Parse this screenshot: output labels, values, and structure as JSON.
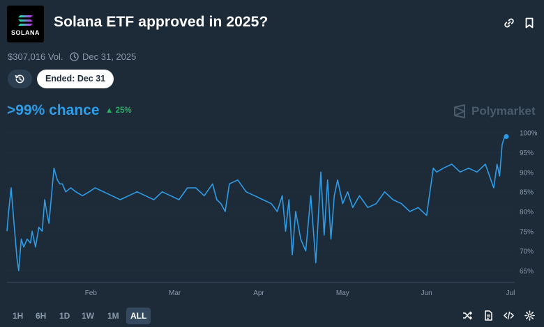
{
  "header": {
    "logo_text": "SOLANA",
    "title": "Solana ETF approved in 2025?",
    "link_icon": "link-icon",
    "bookmark_icon": "bookmark-icon"
  },
  "meta": {
    "volume": "$307,016 Vol.",
    "end_date": "Dec 31, 2025"
  },
  "status": {
    "ended_label": "Ended: Dec 31"
  },
  "outcome": {
    "chance": ">99% chance",
    "change": "25%"
  },
  "brand": "Polymarket",
  "colors": {
    "background": "#1d2b39",
    "accent": "#2e9ce6",
    "positive": "#27ae60",
    "muted": "#8a9aad"
  },
  "chart_data": {
    "type": "line",
    "ylim": [
      62,
      101
    ],
    "y_ticks": [
      100,
      95,
      90,
      85,
      80,
      75,
      70,
      65
    ],
    "y_tick_labels": [
      "100%",
      "95%",
      "90%",
      "85%",
      "80%",
      "75%",
      "70%",
      "65%"
    ],
    "x_tick_labels": [
      "Feb",
      "Mar",
      "Apr",
      "May",
      "Jun",
      "Jul"
    ],
    "x_ticks": [
      1.0,
      2.0,
      3.0,
      4.0,
      5.0,
      6.0
    ],
    "grid": true,
    "series": [
      {
        "color": "#2e9ce6",
        "x": [
          0.0,
          0.02,
          0.05,
          0.08,
          0.12,
          0.14,
          0.17,
          0.2,
          0.24,
          0.28,
          0.3,
          0.34,
          0.38,
          0.42,
          0.45,
          0.48,
          0.5,
          0.53,
          0.56,
          0.6,
          0.63,
          0.66,
          0.7,
          0.76,
          0.82,
          0.9,
          0.98,
          1.05,
          1.15,
          1.25,
          1.35,
          1.45,
          1.55,
          1.65,
          1.75,
          1.85,
          1.95,
          2.05,
          2.15,
          2.25,
          2.35,
          2.45,
          2.5,
          2.55,
          2.6,
          2.65,
          2.75,
          2.85,
          2.95,
          3.05,
          3.15,
          3.22,
          3.28,
          3.32,
          3.36,
          3.4,
          3.44,
          3.5,
          3.56,
          3.62,
          3.68,
          3.74,
          3.78,
          3.82,
          3.86,
          3.9,
          3.94,
          4.0,
          4.06,
          4.12,
          4.2,
          4.3,
          4.4,
          4.5,
          4.6,
          4.7,
          4.8,
          4.9,
          5.0,
          5.08,
          5.12,
          5.2,
          5.3,
          5.4,
          5.5,
          5.6,
          5.7,
          5.75,
          5.8,
          5.84,
          5.87,
          5.9,
          5.93,
          5.95
        ],
        "values": [
          75,
          80,
          86,
          78,
          68,
          65,
          73,
          71,
          73,
          72,
          75,
          71,
          76,
          75,
          83,
          79,
          77,
          84,
          91,
          88,
          87,
          87,
          85,
          86,
          85,
          84,
          85,
          86,
          85,
          84,
          83,
          84,
          85,
          84,
          83,
          85,
          84,
          83,
          86,
          86,
          84,
          87,
          83,
          82,
          80,
          87,
          88,
          85,
          84,
          83,
          82,
          80,
          84,
          75,
          83,
          69,
          80,
          73,
          70,
          84,
          67,
          90,
          74,
          88,
          73,
          84,
          88,
          82,
          85,
          81,
          84,
          81,
          82,
          85,
          83,
          82,
          80,
          81,
          79,
          91,
          90,
          91,
          92,
          90,
          91,
          90,
          92,
          89,
          86,
          92,
          89,
          97,
          99,
          99
        ]
      }
    ]
  },
  "range_buttons": [
    "1H",
    "6H",
    "1D",
    "1W",
    "1M",
    "ALL"
  ],
  "active_range": "ALL",
  "tools": [
    "shuffle-icon",
    "document-icon",
    "embed-code-icon",
    "settings-gear-icon"
  ]
}
